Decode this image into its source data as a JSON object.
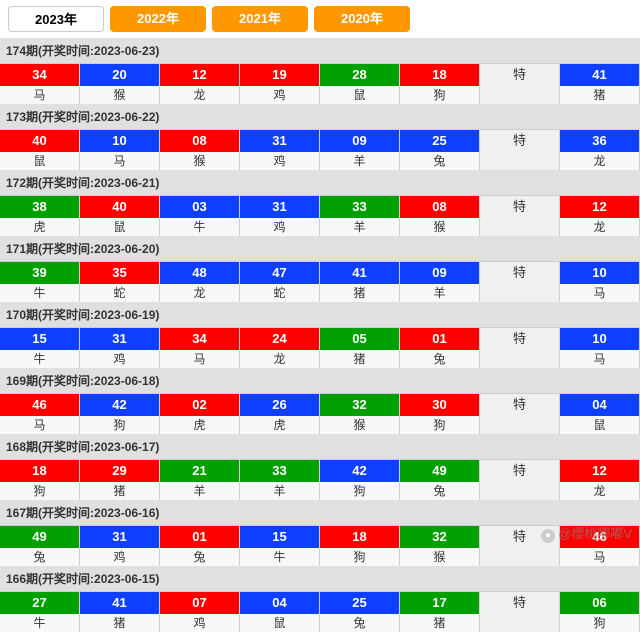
{
  "colors": {
    "red": "#ff0000",
    "blue": "#1040ff",
    "green": "#00a000"
  },
  "years": [
    {
      "label": "2023年",
      "active": true
    },
    {
      "label": "2022年",
      "active": false
    },
    {
      "label": "2021年",
      "active": false
    },
    {
      "label": "2020年",
      "active": false
    }
  ],
  "te_label": "特",
  "watermark": "@櫻桃嘟嘟V",
  "issues": [
    {
      "no": "174",
      "date": "2023-06-23",
      "balls": [
        {
          "n": "34",
          "z": "马",
          "c": "red"
        },
        {
          "n": "20",
          "z": "猴",
          "c": "blue"
        },
        {
          "n": "12",
          "z": "龙",
          "c": "red"
        },
        {
          "n": "19",
          "z": "鸡",
          "c": "red"
        },
        {
          "n": "28",
          "z": "鼠",
          "c": "green"
        },
        {
          "n": "18",
          "z": "狗",
          "c": "red"
        },
        {
          "te": true
        },
        {
          "n": "41",
          "z": "猪",
          "c": "blue"
        }
      ]
    },
    {
      "no": "173",
      "date": "2023-06-22",
      "balls": [
        {
          "n": "40",
          "z": "鼠",
          "c": "red"
        },
        {
          "n": "10",
          "z": "马",
          "c": "blue"
        },
        {
          "n": "08",
          "z": "猴",
          "c": "red"
        },
        {
          "n": "31",
          "z": "鸡",
          "c": "blue"
        },
        {
          "n": "09",
          "z": "羊",
          "c": "blue"
        },
        {
          "n": "25",
          "z": "兔",
          "c": "blue"
        },
        {
          "te": true
        },
        {
          "n": "36",
          "z": "龙",
          "c": "blue"
        }
      ]
    },
    {
      "no": "172",
      "date": "2023-06-21",
      "balls": [
        {
          "n": "38",
          "z": "虎",
          "c": "green"
        },
        {
          "n": "40",
          "z": "鼠",
          "c": "red"
        },
        {
          "n": "03",
          "z": "牛",
          "c": "blue"
        },
        {
          "n": "31",
          "z": "鸡",
          "c": "blue"
        },
        {
          "n": "33",
          "z": "羊",
          "c": "green"
        },
        {
          "n": "08",
          "z": "猴",
          "c": "red"
        },
        {
          "te": true
        },
        {
          "n": "12",
          "z": "龙",
          "c": "red"
        }
      ]
    },
    {
      "no": "171",
      "date": "2023-06-20",
      "balls": [
        {
          "n": "39",
          "z": "牛",
          "c": "green"
        },
        {
          "n": "35",
          "z": "蛇",
          "c": "red"
        },
        {
          "n": "48",
          "z": "龙",
          "c": "blue"
        },
        {
          "n": "47",
          "z": "蛇",
          "c": "blue"
        },
        {
          "n": "41",
          "z": "猪",
          "c": "blue"
        },
        {
          "n": "09",
          "z": "羊",
          "c": "blue"
        },
        {
          "te": true
        },
        {
          "n": "10",
          "z": "马",
          "c": "blue"
        }
      ]
    },
    {
      "no": "170",
      "date": "2023-06-19",
      "balls": [
        {
          "n": "15",
          "z": "牛",
          "c": "blue"
        },
        {
          "n": "31",
          "z": "鸡",
          "c": "blue"
        },
        {
          "n": "34",
          "z": "马",
          "c": "red"
        },
        {
          "n": "24",
          "z": "龙",
          "c": "red"
        },
        {
          "n": "05",
          "z": "猪",
          "c": "green"
        },
        {
          "n": "01",
          "z": "兔",
          "c": "red"
        },
        {
          "te": true
        },
        {
          "n": "10",
          "z": "马",
          "c": "blue"
        }
      ]
    },
    {
      "no": "169",
      "date": "2023-06-18",
      "balls": [
        {
          "n": "46",
          "z": "马",
          "c": "red"
        },
        {
          "n": "42",
          "z": "狗",
          "c": "blue"
        },
        {
          "n": "02",
          "z": "虎",
          "c": "red"
        },
        {
          "n": "26",
          "z": "虎",
          "c": "blue"
        },
        {
          "n": "32",
          "z": "猴",
          "c": "green"
        },
        {
          "n": "30",
          "z": "狗",
          "c": "red"
        },
        {
          "te": true
        },
        {
          "n": "04",
          "z": "鼠",
          "c": "blue"
        }
      ]
    },
    {
      "no": "168",
      "date": "2023-06-17",
      "balls": [
        {
          "n": "18",
          "z": "狗",
          "c": "red"
        },
        {
          "n": "29",
          "z": "猪",
          "c": "red"
        },
        {
          "n": "21",
          "z": "羊",
          "c": "green"
        },
        {
          "n": "33",
          "z": "羊",
          "c": "green"
        },
        {
          "n": "42",
          "z": "狗",
          "c": "blue"
        },
        {
          "n": "49",
          "z": "兔",
          "c": "green"
        },
        {
          "te": true
        },
        {
          "n": "12",
          "z": "龙",
          "c": "red"
        }
      ]
    },
    {
      "no": "167",
      "date": "2023-06-16",
      "balls": [
        {
          "n": "49",
          "z": "兔",
          "c": "green"
        },
        {
          "n": "31",
          "z": "鸡",
          "c": "blue"
        },
        {
          "n": "01",
          "z": "兔",
          "c": "red"
        },
        {
          "n": "15",
          "z": "牛",
          "c": "blue"
        },
        {
          "n": "18",
          "z": "狗",
          "c": "red"
        },
        {
          "n": "32",
          "z": "猴",
          "c": "green"
        },
        {
          "te": true
        },
        {
          "n": "46",
          "z": "马",
          "c": "red"
        }
      ]
    },
    {
      "no": "166",
      "date": "2023-06-15",
      "balls": [
        {
          "n": "27",
          "z": "牛",
          "c": "green"
        },
        {
          "n": "41",
          "z": "猪",
          "c": "blue"
        },
        {
          "n": "07",
          "z": "鸡",
          "c": "red"
        },
        {
          "n": "04",
          "z": "鼠",
          "c": "blue"
        },
        {
          "n": "25",
          "z": "兔",
          "c": "blue"
        },
        {
          "n": "17",
          "z": "猪",
          "c": "green"
        },
        {
          "te": true
        },
        {
          "n": "06",
          "z": "狗",
          "c": "green"
        }
      ]
    }
  ]
}
